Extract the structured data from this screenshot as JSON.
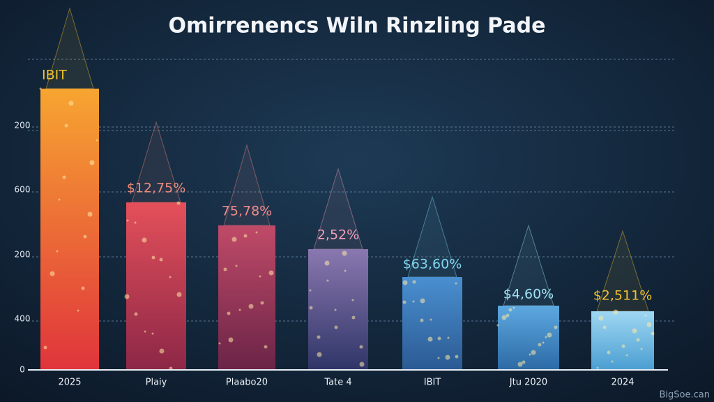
{
  "title": "Omirrenencs Wiln Rinzling Pade",
  "axis_labels": [
    "200",
    "600",
    "200",
    "400",
    "0"
  ],
  "bars": [
    {
      "label": "IBIT",
      "category": "2025"
    },
    {
      "label": "$12,75%",
      "category": "Plaiy"
    },
    {
      "label": "75,78%",
      "category": "Plaabo20"
    },
    {
      "label": "2,52%",
      "category": "Tate 4"
    },
    {
      "label": "$63,60%",
      "category": "IBIT"
    },
    {
      "label": "$4,60%",
      "category": "Jtu 2020"
    },
    {
      "label": "$2,511%",
      "category": "2024"
    }
  ],
  "watermark": "BigSoe.can"
}
